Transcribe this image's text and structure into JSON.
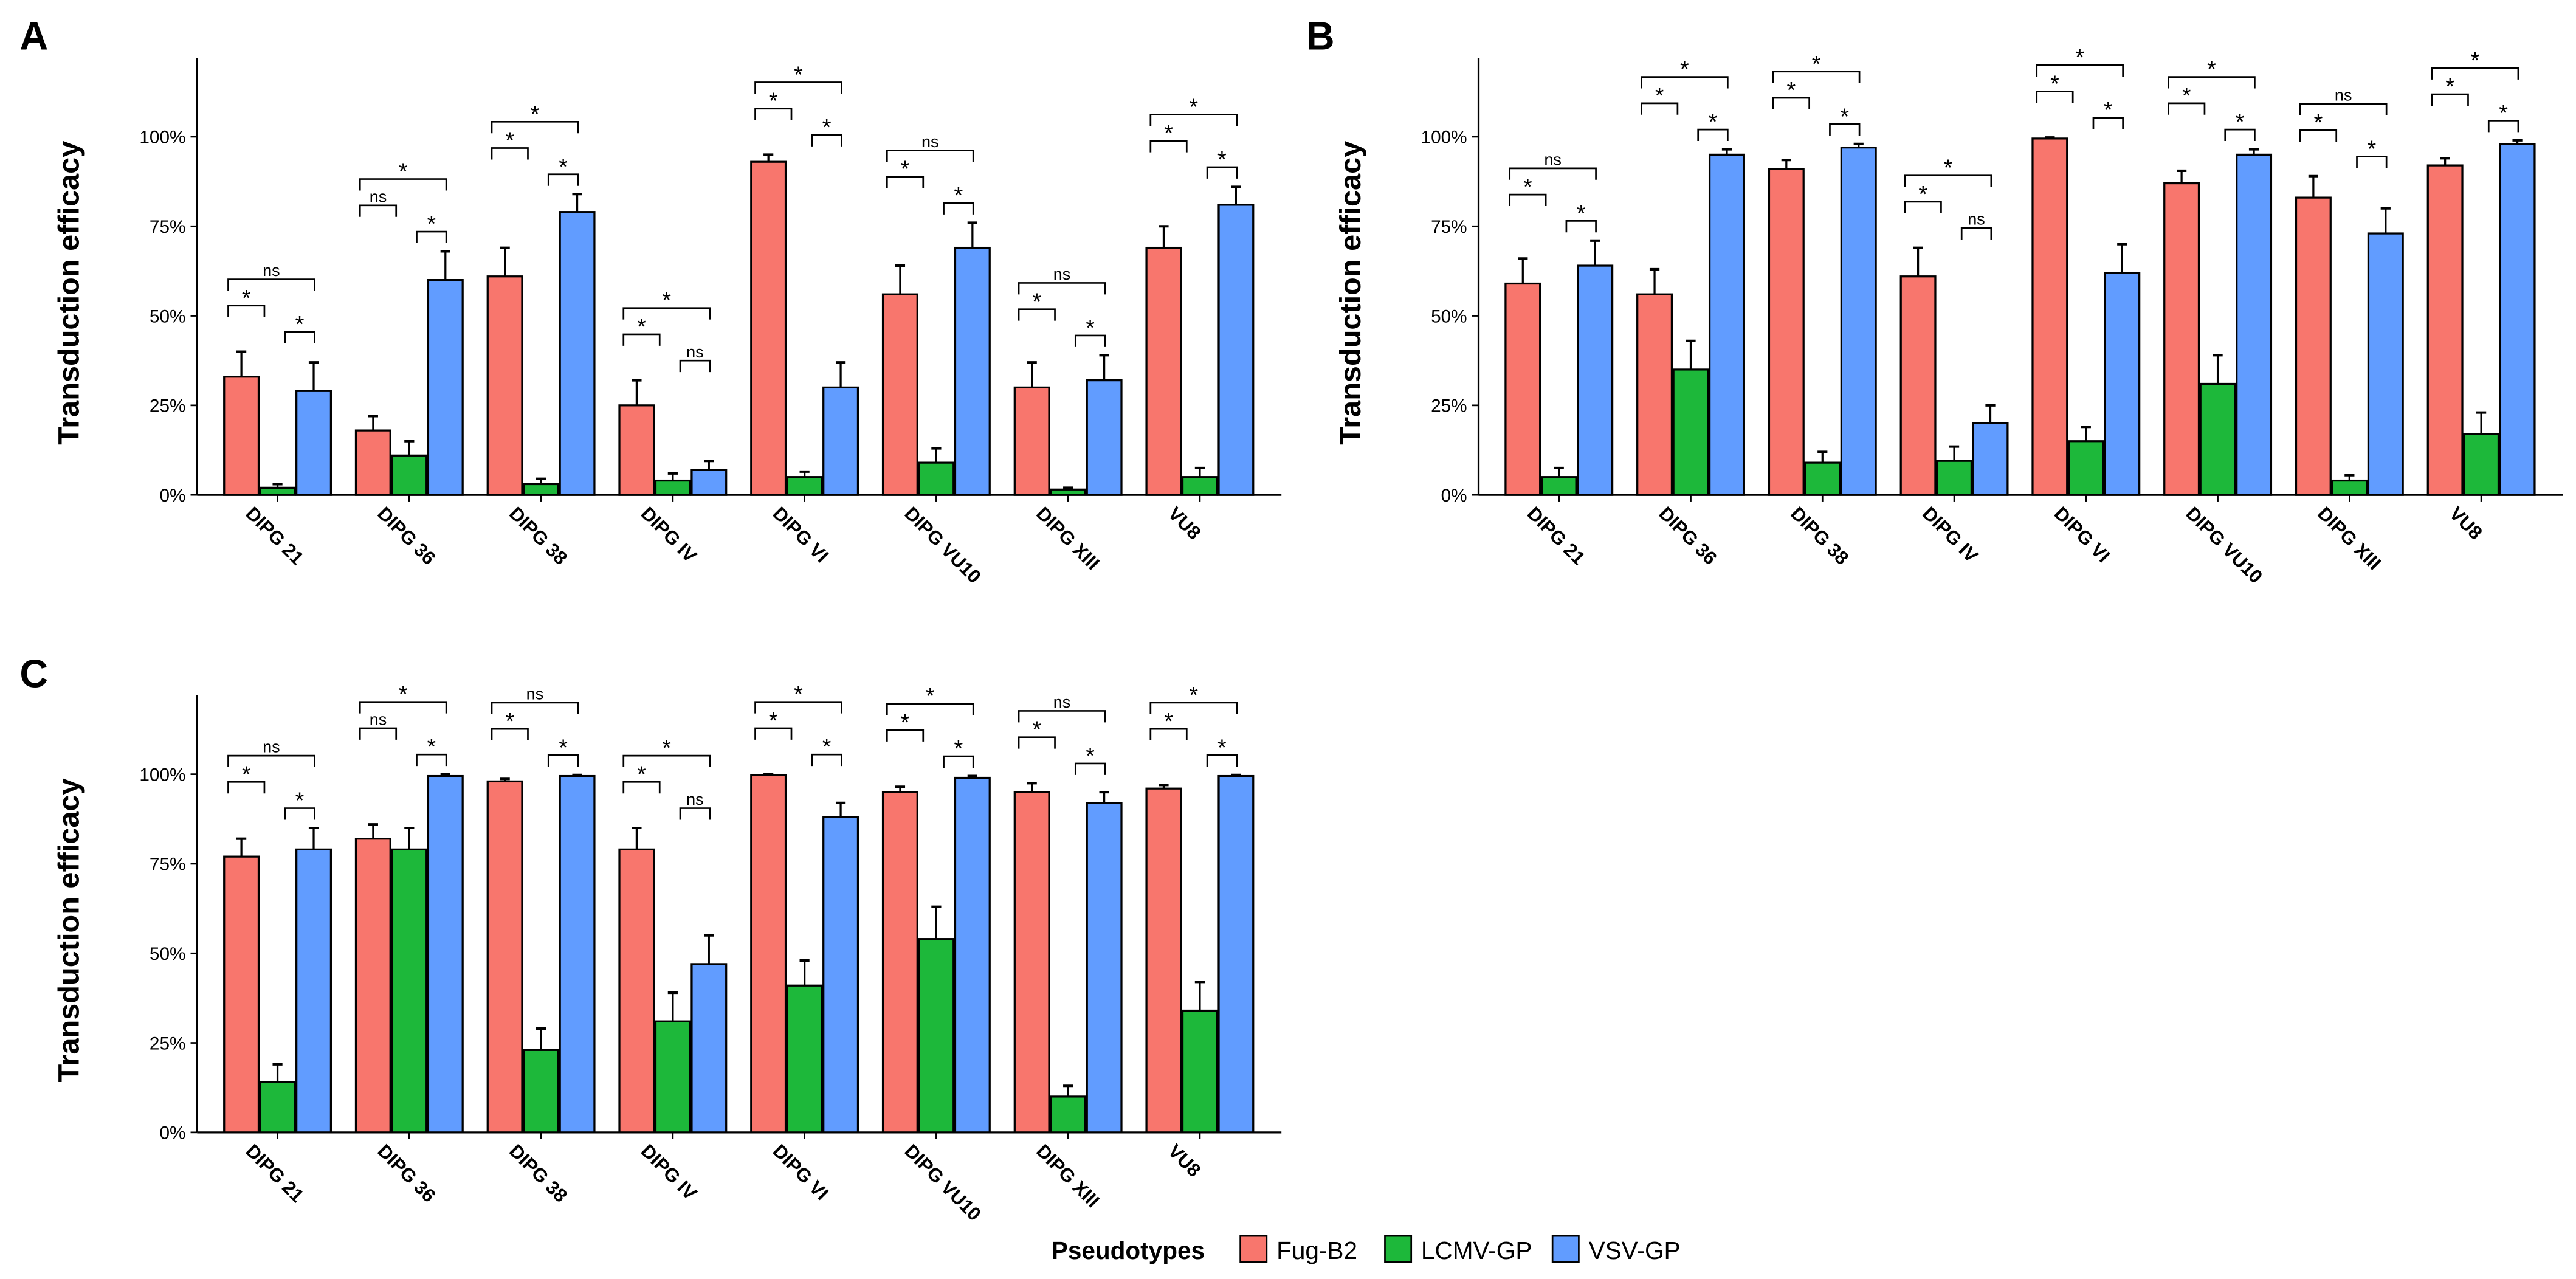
{
  "chart_data": [
    {
      "panel": "A",
      "type": "bar",
      "ylabel": "Transduction efficacy",
      "ylim": [
        0,
        122
      ],
      "yticks": [
        "0%",
        "25%",
        "50%",
        "75%",
        "100%"
      ],
      "categories": [
        "DIPG 21",
        "DIPG 36",
        "DIPG 38",
        "DIPG IV",
        "DIPG VI",
        "DIPG VU10",
        "DIPG XIII",
        "VU8"
      ],
      "series": [
        {
          "name": "Fug-B2",
          "values": [
            33,
            18,
            61,
            25,
            93,
            56,
            30,
            69
          ],
          "errors": [
            7,
            4,
            8,
            7,
            2,
            8,
            7,
            6
          ]
        },
        {
          "name": "LCMV-GP",
          "values": [
            2,
            11,
            3,
            4,
            5,
            9,
            1.5,
            5
          ],
          "errors": [
            1,
            4,
            1.5,
            2,
            1.5,
            4,
            0.5,
            2.5
          ]
        },
        {
          "name": "VSV-GP",
          "values": [
            29,
            60,
            79,
            7,
            30,
            69,
            32,
            81
          ],
          "errors": [
            8,
            8,
            5,
            2.5,
            7,
            7,
            7,
            5
          ]
        }
      ],
      "significance": [
        [
          "*",
          "*",
          "ns"
        ],
        [
          "ns",
          "*",
          "*"
        ],
        [
          "*",
          "*",
          "*"
        ],
        [
          "*",
          "ns",
          "*"
        ],
        [
          "*",
          "*",
          "*"
        ],
        [
          "*",
          "*",
          "ns"
        ],
        [
          "*",
          "*",
          "ns"
        ],
        [
          "*",
          "*",
          "*"
        ]
      ]
    },
    {
      "panel": "B",
      "type": "bar",
      "ylabel": "Transduction efficacy",
      "ylim": [
        0,
        122
      ],
      "yticks": [
        "0%",
        "25%",
        "50%",
        "75%",
        "100%"
      ],
      "categories": [
        "DIPG 21",
        "DIPG 36",
        "DIPG 38",
        "DIPG IV",
        "DIPG VI",
        "DIPG VU10",
        "DIPG XIII",
        "VU8"
      ],
      "series": [
        {
          "name": "Fug-B2",
          "values": [
            59,
            56,
            91,
            61,
            99.5,
            87,
            83,
            92
          ],
          "errors": [
            7,
            7,
            2.5,
            8,
            0.3,
            3.5,
            6,
            2
          ]
        },
        {
          "name": "LCMV-GP",
          "values": [
            5,
            35,
            9,
            9.5,
            15,
            31,
            4,
            17
          ],
          "errors": [
            2.5,
            8,
            3,
            4,
            4,
            8,
            1.5,
            6
          ]
        },
        {
          "name": "VSV-GP",
          "values": [
            64,
            95,
            97,
            20,
            62,
            95,
            73,
            98
          ],
          "errors": [
            7,
            1.5,
            1,
            5,
            8,
            1.5,
            7,
            1
          ]
        }
      ],
      "significance": [
        [
          "*",
          "*",
          "ns"
        ],
        [
          "*",
          "*",
          "*"
        ],
        [
          "*",
          "*",
          "*"
        ],
        [
          "*",
          "ns",
          "*"
        ],
        [
          "*",
          "*",
          "*"
        ],
        [
          "*",
          "*",
          "*"
        ],
        [
          "*",
          "*",
          "ns"
        ],
        [
          "*",
          "*",
          "*"
        ]
      ]
    },
    {
      "panel": "C",
      "type": "bar",
      "ylabel": "Transduction efficacy",
      "ylim": [
        0,
        122
      ],
      "yticks": [
        "0%",
        "25%",
        "50%",
        "75%",
        "100%"
      ],
      "categories": [
        "DIPG 21",
        "DIPG 36",
        "DIPG 38",
        "DIPG IV",
        "DIPG VI",
        "DIPG VU10",
        "DIPG XIII",
        "VU8"
      ],
      "series": [
        {
          "name": "Fug-B2",
          "values": [
            77,
            82,
            98,
            79,
            99.8,
            95,
            95,
            96
          ],
          "errors": [
            5,
            4,
            0.7,
            6,
            0.2,
            1.5,
            2.5,
            1
          ]
        },
        {
          "name": "LCMV-GP",
          "values": [
            14,
            79,
            23,
            31,
            41,
            54,
            10,
            34
          ],
          "errors": [
            5,
            6,
            6,
            8,
            7,
            9,
            3,
            8
          ]
        },
        {
          "name": "VSV-GP",
          "values": [
            79,
            99.5,
            99.5,
            47,
            88,
            99,
            92,
            99.5
          ],
          "errors": [
            6,
            0.5,
            0.3,
            8,
            4,
            0.5,
            3,
            0.3
          ]
        }
      ],
      "significance": [
        [
          "*",
          "*",
          "ns"
        ],
        [
          "ns",
          "*",
          "*"
        ],
        [
          "*",
          "*",
          "ns"
        ],
        [
          "*",
          "ns",
          "*"
        ],
        [
          "*",
          "*",
          "*"
        ],
        [
          "*",
          "*",
          "*"
        ],
        [
          "*",
          "*",
          "ns"
        ],
        [
          "*",
          "*",
          "*"
        ]
      ]
    }
  ],
  "legend": {
    "title": "Pseudotypes",
    "items": [
      "Fug-B2",
      "LCMV-GP",
      "VSV-GP"
    ],
    "position": "bottom"
  },
  "colors": [
    "#F8766D",
    "#1DB83A",
    "#619CFF"
  ]
}
